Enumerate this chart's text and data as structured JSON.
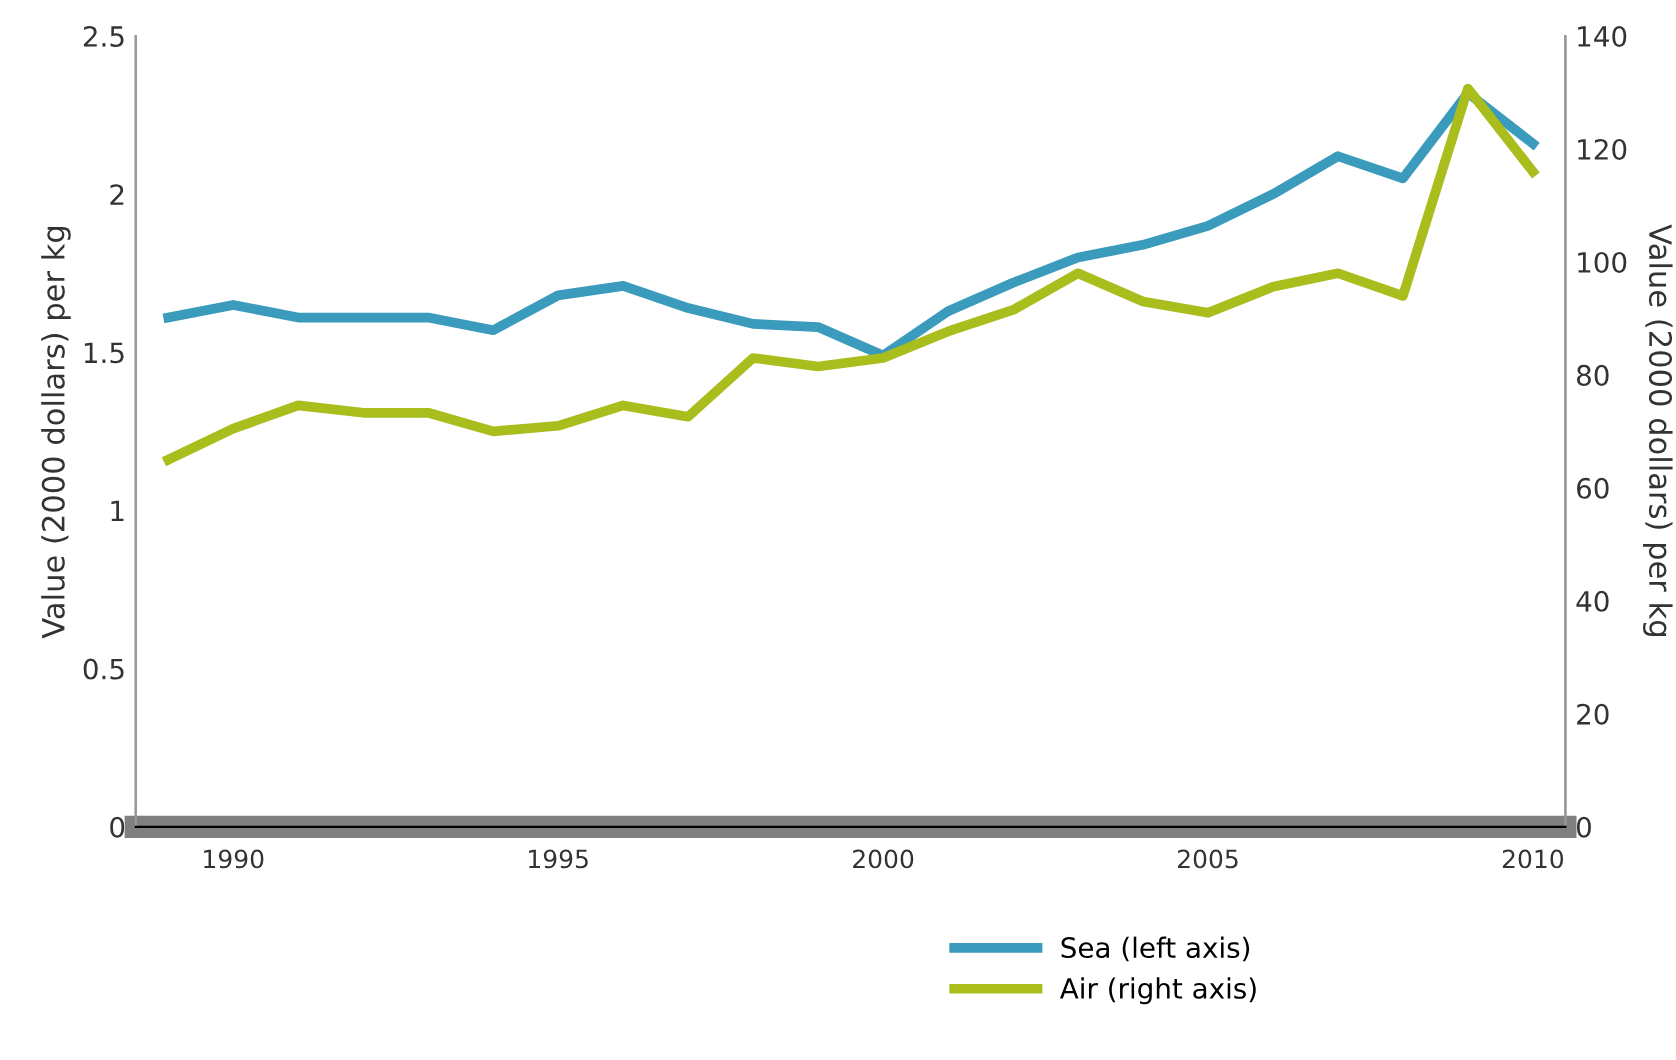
{
  "chart_data": {
    "type": "line",
    "ylabel": "Value (2000 dollars) per kg",
    "y2label": "Value (2000 dollars) per kg",
    "x": [
      1989,
      1990,
      1991,
      1992,
      1993,
      1994,
      1995,
      1996,
      1997,
      1998,
      1999,
      2000,
      2001,
      2002,
      2003,
      2004,
      2005,
      2006,
      2007,
      2008,
      2009,
      2010
    ],
    "series": [
      {
        "name": "Sea (left axis)",
        "color": "#3a9bbd",
        "values": [
          1.61,
          1.65,
          1.61,
          1.61,
          1.61,
          1.57,
          1.68,
          1.71,
          1.64,
          1.59,
          1.58,
          1.49,
          1.63,
          1.72,
          1.8,
          1.84,
          1.9,
          2.0,
          2.12,
          2.05,
          2.32,
          2.16
        ]
      },
      {
        "name": "Air (right axis)",
        "color": "#a9bd1d",
        "axis": "y2",
        "values": [
          65,
          70.5,
          74.6,
          73.3,
          73.3,
          70,
          71,
          74.6,
          72.6,
          83,
          81.5,
          83,
          87.7,
          91.5,
          98,
          93,
          91,
          95.6,
          98,
          94,
          130.7,
          116
        ]
      }
    ],
    "xlim": [
      1988.5,
      2010.5
    ],
    "xticks": [
      1990,
      1995,
      2000,
      2005,
      2010
    ],
    "ylim": [
      0,
      2.5
    ],
    "yticks": [
      0,
      0.5,
      1,
      1.5,
      2,
      2.5
    ],
    "y2lim": [
      0,
      140
    ],
    "y2ticks": [
      0,
      20,
      40,
      60,
      80,
      100,
      120,
      140
    ],
    "grid": false,
    "legend": "bottom",
    "line_style": "solid",
    "marker": "none"
  }
}
